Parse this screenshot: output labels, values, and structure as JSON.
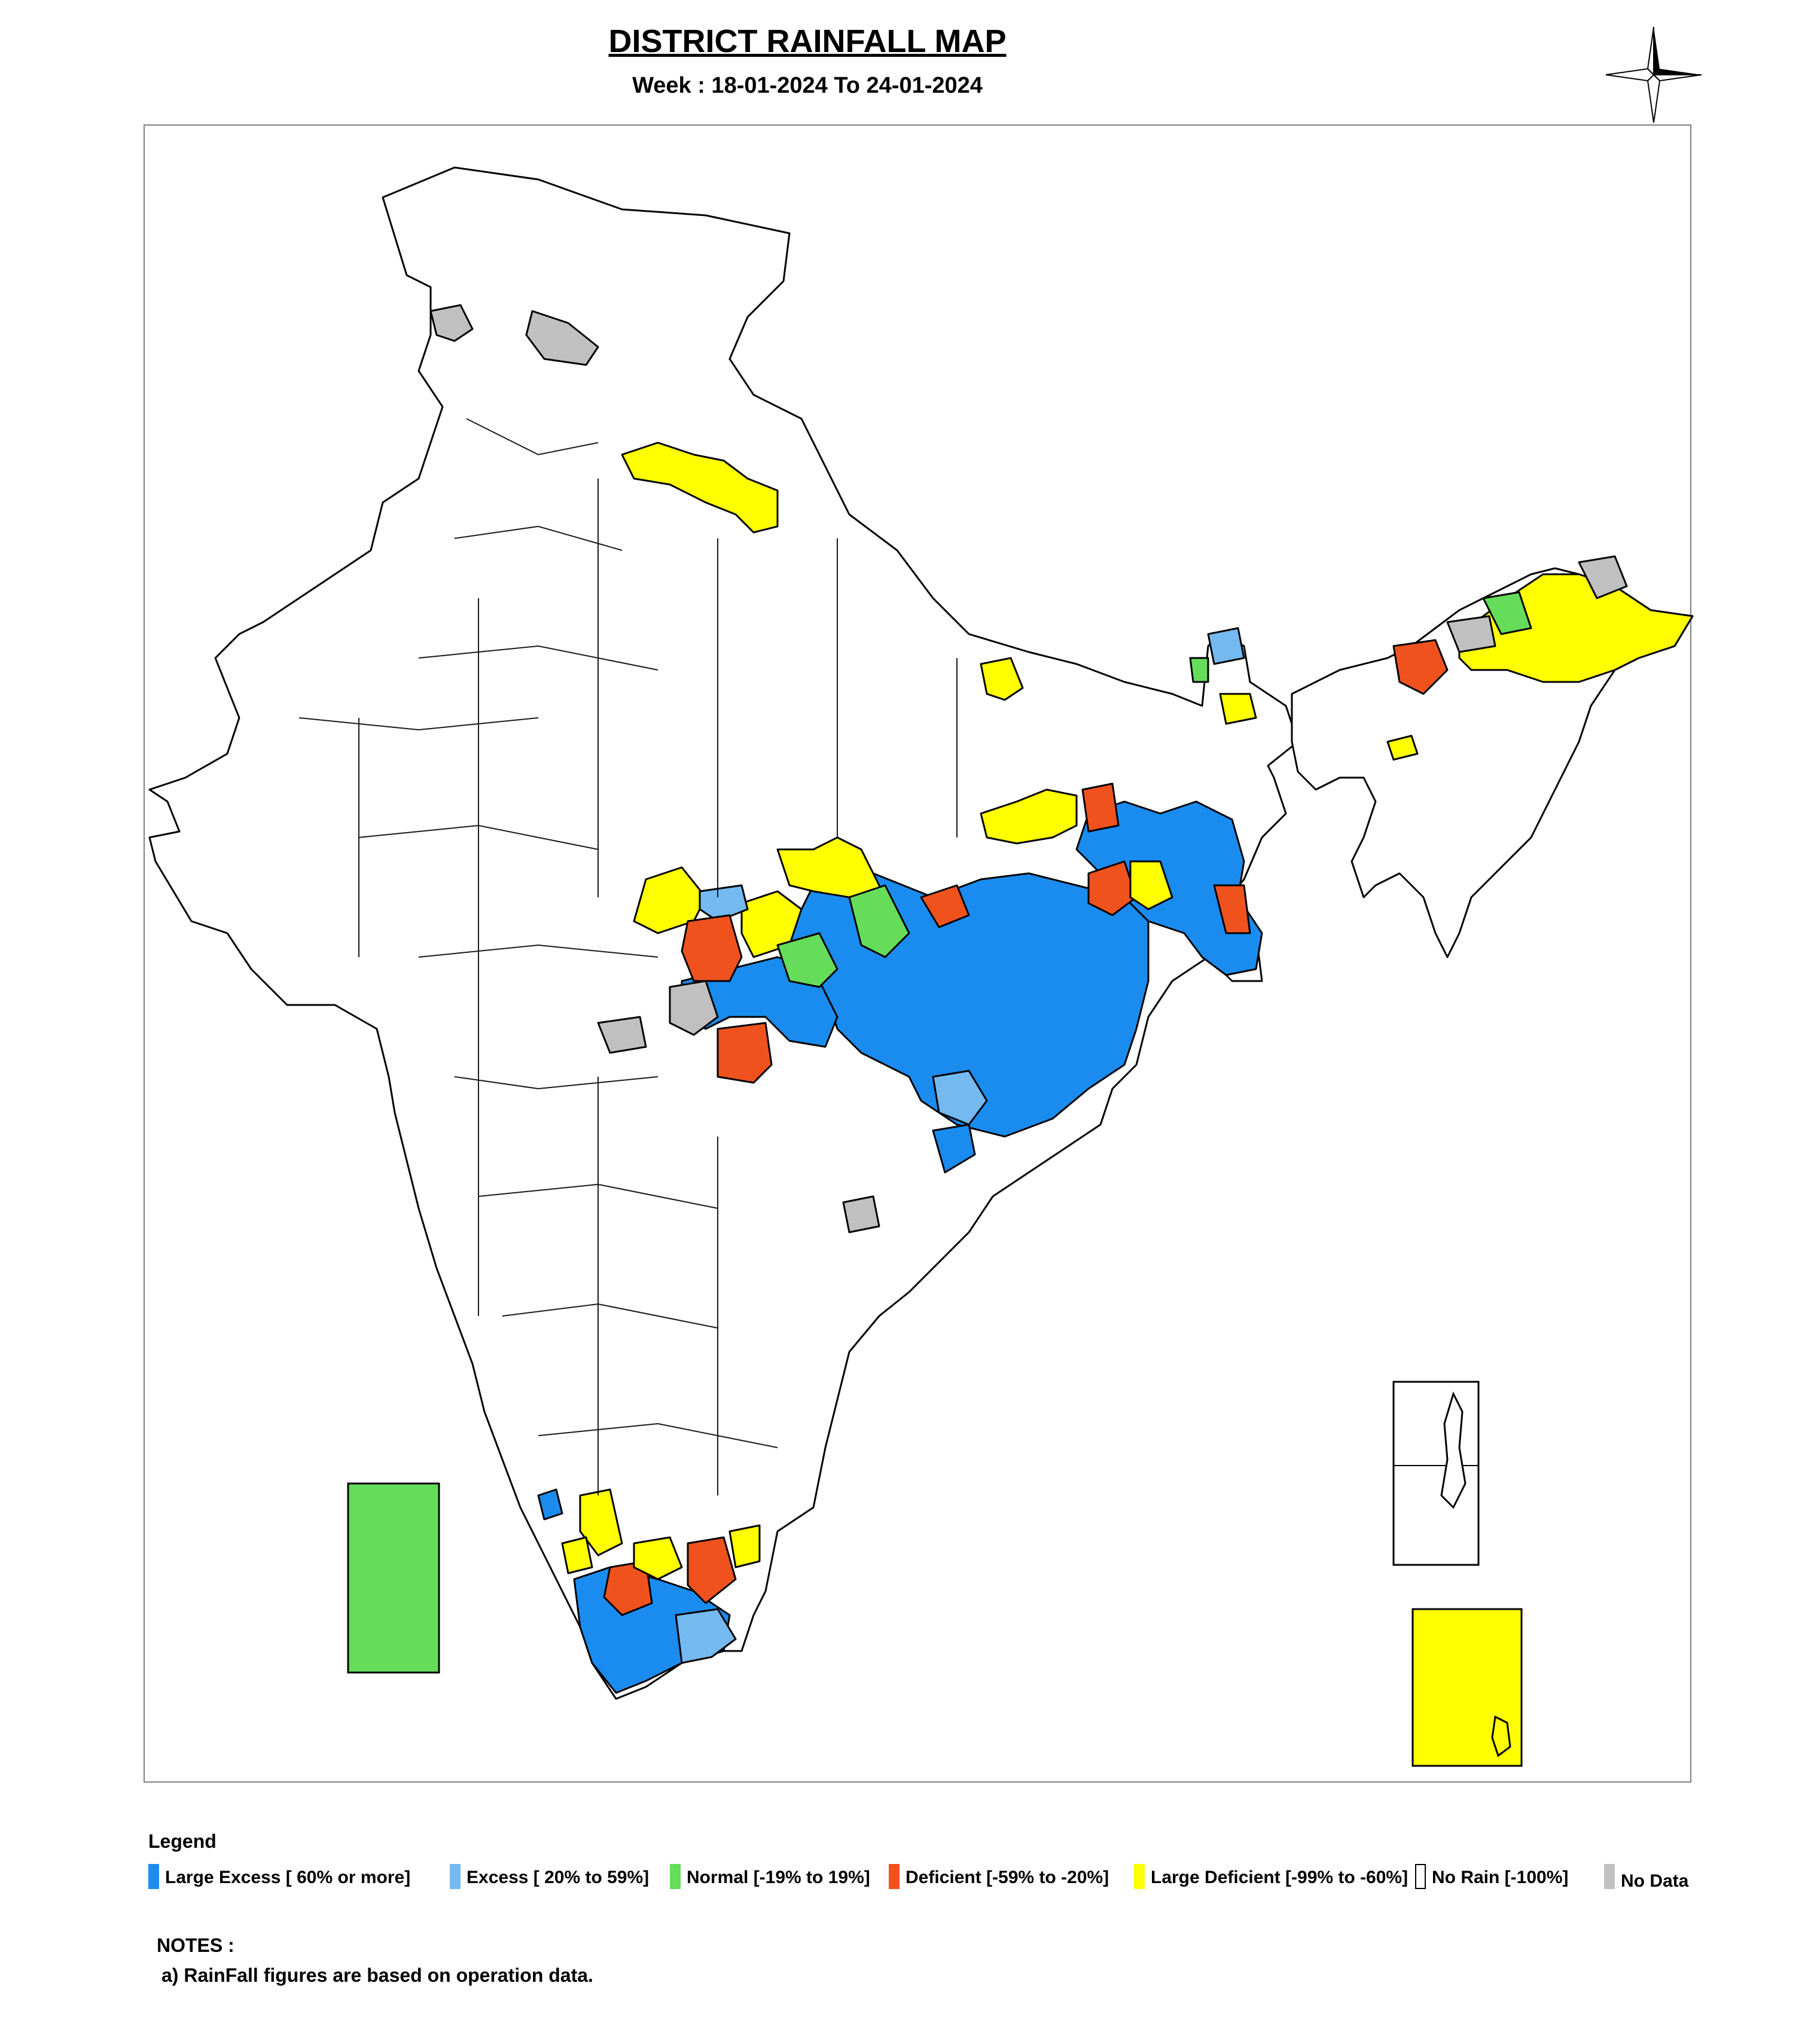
{
  "header": {
    "title": "DISTRICT RAINFALL MAP",
    "subtitle": "Week : 18-01-2024 To 24-01-2024"
  },
  "colors": {
    "large_excess": "#1a8cf0",
    "excess": "#74b9f0",
    "normal": "#66dd5a",
    "deficient": "#f0521e",
    "large_deficient": "#ffff00",
    "no_rain": "#ffffff",
    "no_data": "#c0c0c0",
    "outline": "#000000"
  },
  "legend": {
    "title": "Legend",
    "items": [
      {
        "label": "Large Excess [ 60% or more]",
        "category": "large_excess"
      },
      {
        "label": "Excess [ 20% to 59%]",
        "category": "excess"
      },
      {
        "label": "Normal [-19% to 19%]",
        "category": "normal"
      },
      {
        "label": "Deficient [-59% to -20%]",
        "category": "deficient"
      },
      {
        "label": "Large Deficient [-99% to -60%]",
        "category": "large_deficient"
      },
      {
        "label": "No Rain  [-100%]",
        "category": "no_rain"
      },
      {
        "label": "No Data",
        "category": "no_data"
      }
    ]
  },
  "notes": {
    "title": "NOTES :",
    "items": [
      "a) RainFall figures are based on operation data."
    ]
  },
  "map": {
    "icons": [
      "compass-rose-icon"
    ],
    "insets": [
      {
        "name": "lakshadweep",
        "category": "normal"
      },
      {
        "name": "andaman-nicobar",
        "category": "no_rain"
      },
      {
        "name": "andaman-nicobar-south",
        "category": "large_deficient"
      }
    ]
  }
}
